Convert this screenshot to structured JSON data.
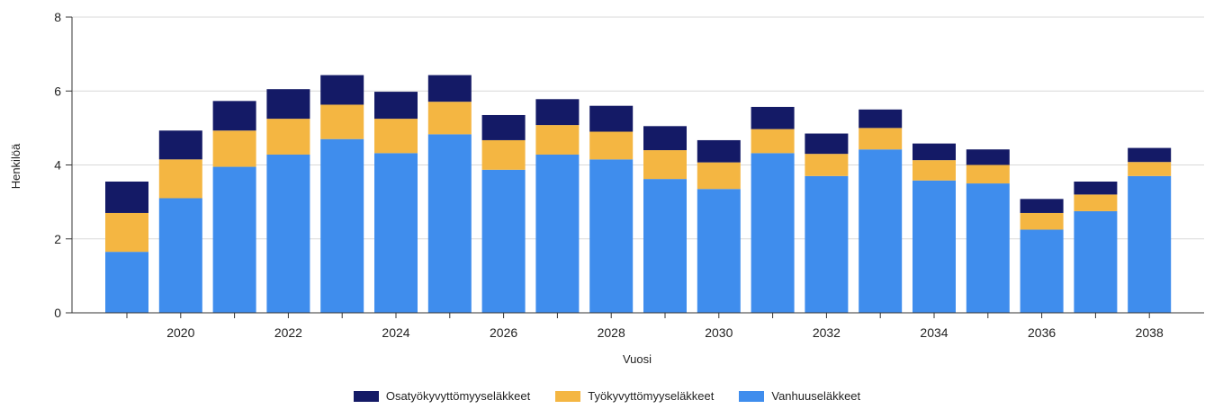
{
  "chart_data": {
    "type": "bar",
    "stacked": true,
    "xlabel": "Vuosi",
    "ylabel": "Henkilöä",
    "ylim": [
      0,
      8
    ],
    "yticks": [
      0,
      2,
      4,
      6,
      8
    ],
    "grid": true,
    "legend_position": "bottom",
    "categories": [
      2019,
      2020,
      2021,
      2022,
      2023,
      2024,
      2025,
      2026,
      2027,
      2028,
      2029,
      2030,
      2031,
      2032,
      2033,
      2034,
      2035,
      2036,
      2037,
      2038
    ],
    "xtick_labels": [
      "2020",
      "2022",
      "2024",
      "2026",
      "2028",
      "2030",
      "2032",
      "2034",
      "2036",
      "2038"
    ],
    "series": [
      {
        "name": "Vanhuuseläkkeet",
        "color": "#3f8ded",
        "values": [
          1.65,
          3.1,
          3.95,
          4.28,
          4.7,
          4.32,
          4.83,
          3.87,
          4.28,
          4.15,
          3.62,
          3.35,
          4.32,
          3.7,
          4.42,
          3.58,
          3.5,
          2.25,
          2.75,
          3.7
        ]
      },
      {
        "name": "Työkyvyttömyyseläkkeet",
        "color": "#f4b642",
        "values": [
          1.05,
          1.05,
          0.98,
          0.97,
          0.93,
          0.93,
          0.88,
          0.8,
          0.8,
          0.75,
          0.78,
          0.72,
          0.65,
          0.6,
          0.58,
          0.55,
          0.5,
          0.45,
          0.45,
          0.38
        ]
      },
      {
        "name": "Osatyökyvyttömyyseläkkeet",
        "color": "#141a66",
        "values": [
          0.85,
          0.78,
          0.8,
          0.8,
          0.8,
          0.73,
          0.72,
          0.68,
          0.7,
          0.7,
          0.65,
          0.6,
          0.6,
          0.55,
          0.5,
          0.45,
          0.42,
          0.38,
          0.35,
          0.38
        ]
      }
    ]
  },
  "legend": [
    {
      "name": "Osatyökyvyttömyyseläkkeet",
      "color": "#141a66"
    },
    {
      "name": "Työkyvyttömyyseläkkeet",
      "color": "#f4b642"
    },
    {
      "name": "Vanhuuseläkkeet",
      "color": "#3f8ded"
    }
  ]
}
